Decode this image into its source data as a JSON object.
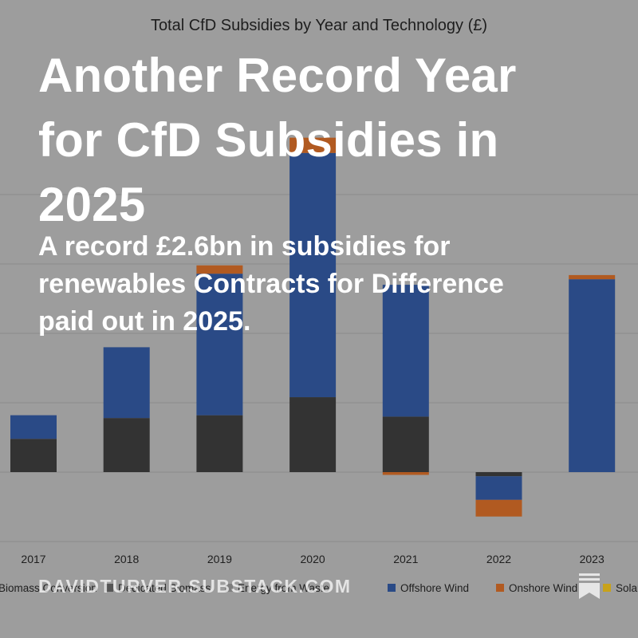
{
  "overlay": {
    "title": "Another Record Year for CfD Subsidies in 2025",
    "subtitle": "A record £2.6bn in subsidies for renewables Contracts for Difference paid out in 2025.",
    "domain": "DAVIDTURVER.SUBSTACK.COM"
  },
  "icons": {
    "bookmark": "bookmark-icon"
  },
  "colors": {
    "background": "#9d9d9d",
    "biomass_conversion": "#333333",
    "dedicated_biomass": "#555555",
    "energy_from_waste": "#7d7d7d",
    "offshore_wind": "#2a4a86",
    "onshore_wind": "#b15a21",
    "solar": "#c8a21a"
  },
  "chart_data": {
    "type": "bar",
    "stacked": true,
    "title": "Total CfD Subsidies by Year and Technology (£)",
    "xlabel": "",
    "ylabel": "",
    "categories": [
      "2017",
      "2018",
      "2019",
      "2020",
      "2021",
      "2022",
      "2023"
    ],
    "ylim": [
      -0.5,
      2.3
    ],
    "series": [
      {
        "name": "Biomass Conversion",
        "values": [
          0.24,
          0.39,
          0.41,
          0.54,
          0.4,
          -0.03,
          0
        ]
      },
      {
        "name": "Dedicated Biomass",
        "values": [
          0,
          0,
          0,
          0,
          0,
          0,
          0
        ]
      },
      {
        "name": "Energy from Waste",
        "values": [
          0,
          0,
          0,
          0,
          0,
          0,
          0
        ]
      },
      {
        "name": "Offshore Wind",
        "values": [
          0.17,
          0.51,
          1.02,
          1.76,
          0.95,
          -0.17,
          1.39
        ]
      },
      {
        "name": "Onshore Wind",
        "values": [
          0,
          0,
          0.06,
          0.11,
          -0.02,
          -0.12,
          0.03
        ]
      },
      {
        "name": "Solar",
        "values": [
          0,
          0,
          0,
          0,
          0,
          0,
          0
        ]
      }
    ],
    "legend": [
      "Biomass Conversion",
      "Dedicated Biomass",
      "Energy from Waste",
      "Offshore Wind",
      "Onshore Wind",
      "Solar"
    ],
    "legend_position": "bottom"
  }
}
